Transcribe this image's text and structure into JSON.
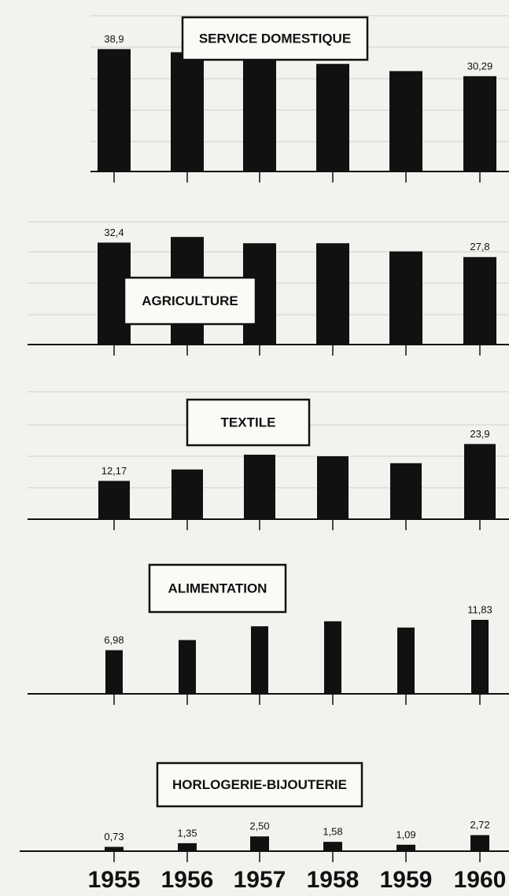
{
  "chart_data": [
    {
      "type": "bar",
      "title": "SERVICE DOMESTIQUE",
      "color": "#111111",
      "values": [
        38.9,
        37.9,
        35.9,
        34.2,
        31.9,
        30.29
      ],
      "value_labels": [
        "38,9",
        null,
        null,
        null,
        null,
        "30,29"
      ]
    },
    {
      "type": "bar",
      "title": "AGRICULTURE",
      "color": "#111111",
      "values": [
        32.4,
        34.2,
        32.2,
        32.2,
        29.6,
        27.8
      ],
      "value_labels": [
        "32,4",
        null,
        null,
        null,
        null,
        "27,8"
      ]
    },
    {
      "type": "bar",
      "title": "TEXTILE",
      "color": "#111111",
      "values": [
        12.17,
        15.8,
        20.5,
        20.0,
        17.8,
        23.9
      ],
      "value_labels": [
        "12,17",
        null,
        null,
        null,
        null,
        "23,9"
      ]
    },
    {
      "type": "bar",
      "title": "ALIMENTATION",
      "color": "#111111",
      "values": [
        6.98,
        8.6,
        10.8,
        11.6,
        10.6,
        11.83
      ],
      "value_labels": [
        "6,98",
        null,
        null,
        null,
        null,
        "11,83"
      ]
    },
    {
      "type": "bar",
      "title": "HORLOGERIE-BIJOUTERIE",
      "color": "#111111",
      "categories": [
        "1955",
        "1956",
        "1957",
        "1958",
        "1959",
        "1960"
      ],
      "values": [
        0.73,
        1.35,
        2.5,
        1.58,
        1.09,
        2.72
      ],
      "value_labels": [
        "0,73",
        "1,35",
        "2,50",
        "1,58",
        "1,09",
        "2,72"
      ]
    }
  ]
}
